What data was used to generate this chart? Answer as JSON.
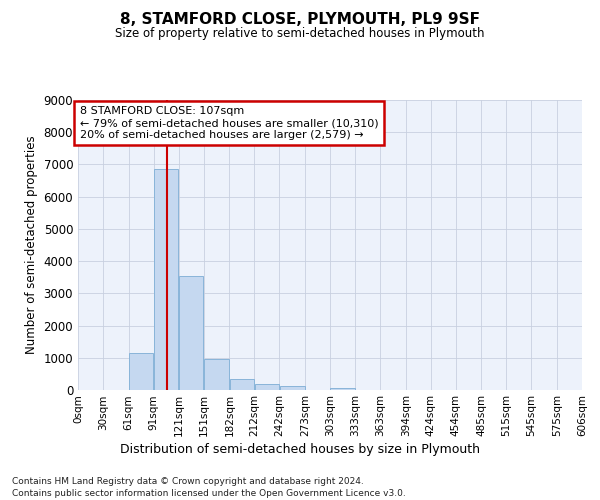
{
  "title": "8, STAMFORD CLOSE, PLYMOUTH, PL9 9SF",
  "subtitle": "Size of property relative to semi-detached houses in Plymouth",
  "xlabel": "Distribution of semi-detached houses by size in Plymouth",
  "ylabel": "Number of semi-detached properties",
  "bin_edges": [
    0,
    30,
    61,
    91,
    121,
    151,
    182,
    212,
    242,
    273,
    303,
    333,
    363,
    394,
    424,
    454,
    485,
    515,
    545,
    576,
    606
  ],
  "bar_heights": [
    0,
    0,
    1150,
    6850,
    3550,
    950,
    350,
    175,
    125,
    0,
    75,
    0,
    0,
    0,
    0,
    0,
    0,
    0,
    0,
    0
  ],
  "bar_color": "#c5d8f0",
  "bar_edgecolor": "#89b4d9",
  "grid_color": "#c8d0e0",
  "background_color": "#edf2fb",
  "red_line_x": 107,
  "ylim": [
    0,
    9000
  ],
  "yticks": [
    0,
    1000,
    2000,
    3000,
    4000,
    5000,
    6000,
    7000,
    8000,
    9000
  ],
  "annotation_title": "8 STAMFORD CLOSE: 107sqm",
  "annotation_line1": "← 79% of semi-detached houses are smaller (10,310)",
  "annotation_line2": "20% of semi-detached houses are larger (2,579) →",
  "annotation_box_facecolor": "#ffffff",
  "annotation_box_edgecolor": "#cc0000",
  "footnote1": "Contains HM Land Registry data © Crown copyright and database right 2024.",
  "footnote2": "Contains public sector information licensed under the Open Government Licence v3.0.",
  "tick_labels": [
    "0sqm",
    "30sqm",
    "61sqm",
    "91sqm",
    "121sqm",
    "151sqm",
    "182sqm",
    "212sqm",
    "242sqm",
    "273sqm",
    "303sqm",
    "333sqm",
    "363sqm",
    "394sqm",
    "424sqm",
    "454sqm",
    "485sqm",
    "515sqm",
    "545sqm",
    "575sqm",
    "606sqm"
  ]
}
